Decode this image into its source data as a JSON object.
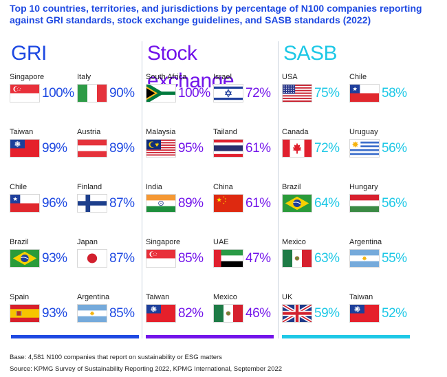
{
  "title": "Top 10 countries, territories, and jurisdictions by percentage of N100 companies reporting against GRI standards, stock exchange guidelines, and SASB standards (2022)",
  "colors": {
    "gri": "#1e49e2",
    "stock": "#7213ea",
    "sasb": "#1ec8e6",
    "title": "#1e49e2"
  },
  "chart_data": {
    "type": "table",
    "title": "Top 10 countries, territories, and jurisdictions by percentage of N100 companies reporting against GRI standards, stock exchange guidelines, and SASB standards (2022)",
    "unit": "%",
    "panels": [
      {
        "name": "GRI",
        "color": "#1e49e2",
        "entries": [
          {
            "country": "Singapore",
            "label": "100%",
            "value": 100,
            "flag": "singapore-flag"
          },
          {
            "country": "Italy",
            "label": "90%",
            "value": 90,
            "flag": "italy-flag"
          },
          {
            "country": "Taiwan",
            "label": "99%",
            "value": 99,
            "flag": "taiwan-flag"
          },
          {
            "country": "Austria",
            "label": "89%",
            "value": 89,
            "flag": "austria-flag"
          },
          {
            "country": "Chile",
            "label": "96%",
            "value": 96,
            "flag": "chile-flag"
          },
          {
            "country": "Finland",
            "label": "87%",
            "value": 87,
            "flag": "finland-flag"
          },
          {
            "country": "Brazil",
            "label": "93%",
            "value": 93,
            "flag": "brazil-flag"
          },
          {
            "country": "Japan",
            "label": "87%",
            "value": 87,
            "flag": "japan-flag"
          },
          {
            "country": "Spain",
            "label": "93%",
            "value": 93,
            "flag": "spain-flag"
          },
          {
            "country": "Argentina",
            "label": "85%",
            "value": 85,
            "flag": "argentina-flag"
          }
        ]
      },
      {
        "name": "Stock exchange",
        "color": "#7213ea",
        "entries": [
          {
            "country": "South Africa",
            "label": "100%",
            "value": 100,
            "flag": "south-africa-flag"
          },
          {
            "country": "Israel",
            "label": "72%",
            "value": 72,
            "flag": "israel-flag"
          },
          {
            "country": "Malaysia",
            "label": "95%",
            "value": 95,
            "flag": "malaysia-flag"
          },
          {
            "country": "Tailand",
            "label": "61%",
            "value": 61,
            "flag": "thailand-flag"
          },
          {
            "country": "India",
            "label": "89%",
            "value": 89,
            "flag": "india-flag"
          },
          {
            "country": "China",
            "label": "61%",
            "value": 61,
            "flag": "china-flag"
          },
          {
            "country": "Singapore",
            "label": "85%",
            "value": 85,
            "flag": "singapore-flag"
          },
          {
            "country": "UAE",
            "label": "47%",
            "value": 47,
            "flag": "uae-flag"
          },
          {
            "country": "Taiwan",
            "label": "82%",
            "value": 82,
            "flag": "taiwan-flag"
          },
          {
            "country": "Mexico",
            "label": "46%",
            "value": 46,
            "flag": "mexico-flag"
          }
        ]
      },
      {
        "name": "SASB",
        "color": "#1ec8e6",
        "entries": [
          {
            "country": "USA",
            "label": "75%",
            "value": 75,
            "flag": "usa-flag"
          },
          {
            "country": "Chile",
            "label": "58%",
            "value": 58,
            "flag": "chile-flag"
          },
          {
            "country": "Canada",
            "label": "72%",
            "value": 72,
            "flag": "canada-flag"
          },
          {
            "country": "Uruguay",
            "label": "56%",
            "value": 56,
            "flag": "uruguay-flag"
          },
          {
            "country": "Brazil",
            "label": "64%",
            "value": 64,
            "flag": "brazil-flag"
          },
          {
            "country": "Hungary",
            "label": "56%",
            "value": 56,
            "flag": "hungary-flag"
          },
          {
            "country": "Mexico",
            "label": "63%",
            "value": 63,
            "flag": "mexico-flag"
          },
          {
            "country": "Argentina",
            "label": "55%",
            "value": 55,
            "flag": "argentina-flag"
          },
          {
            "country": "UK",
            "label": "59%",
            "value": 59,
            "flag": "uk-flag"
          },
          {
            "country": "Taiwan",
            "label": "52%",
            "value": 52,
            "flag": "taiwan-flag"
          }
        ]
      }
    ]
  },
  "footnotes": {
    "base": "Base: 4,581 N100 companies that report on sustainability or ESG matters",
    "source": "Source: KPMG Survey of Sustainability Reporting 2022, KPMG International, September 2022"
  }
}
